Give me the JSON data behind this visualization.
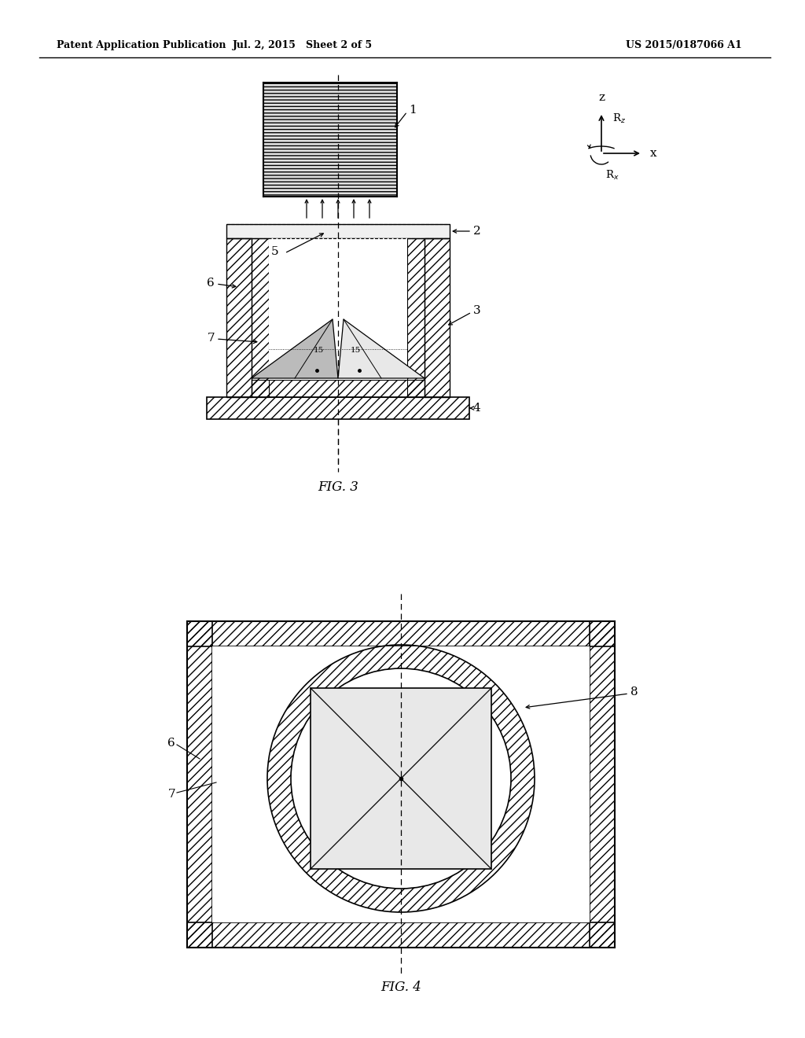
{
  "header_left": "Patent Application Publication",
  "header_mid": "Jul. 2, 2015   Sheet 2 of 5",
  "header_right": "US 2015/0187066 A1",
  "fig3_label": "FIG. 3",
  "fig4_label": "FIG. 4",
  "bg_color": "#ffffff",
  "black": "#000000",
  "gray_hatch": "#999999",
  "light_fill": "#e8e8e8",
  "mid_fill": "#bbbbbb",
  "dark_fill": "#888888"
}
